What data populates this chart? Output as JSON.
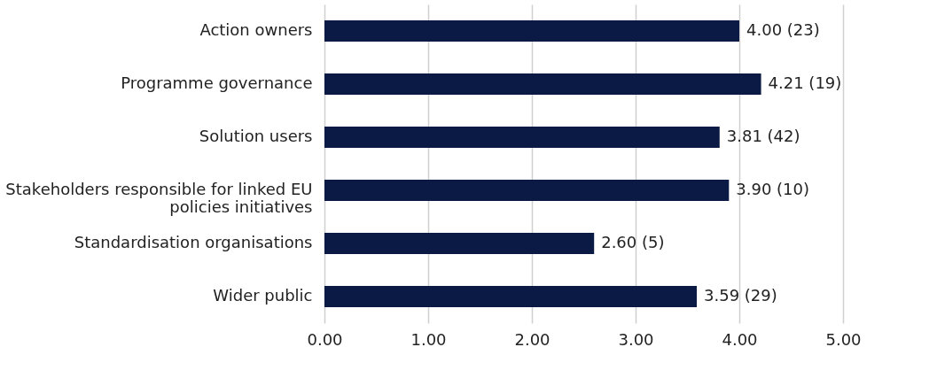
{
  "chart_data": {
    "type": "bar",
    "orientation": "horizontal",
    "categories": [
      "Action owners",
      "Programme governance",
      "Solution users",
      "Stakeholders responsible for linked EU policies initiatives",
      "Standardisation organisations",
      "Wider public"
    ],
    "values": [
      4.0,
      4.21,
      3.81,
      3.9,
      2.6,
      3.59
    ],
    "value_labels": [
      "4.00 (23)",
      "4.21 (19)",
      "3.81 (42)",
      "3.90 (10)",
      "2.60 (5)",
      "3.59 (29)"
    ],
    "color": "#0a1a45",
    "xlim": [
      0,
      5
    ],
    "xticks": [
      {
        "value": 0,
        "label": "0.00"
      },
      {
        "value": 1,
        "label": "1.00"
      },
      {
        "value": 2,
        "label": "2.00"
      },
      {
        "value": 3,
        "label": "3.00"
      },
      {
        "value": 4,
        "label": "4.00"
      },
      {
        "value": 5,
        "label": "5.00"
      }
    ],
    "grid": "x"
  }
}
